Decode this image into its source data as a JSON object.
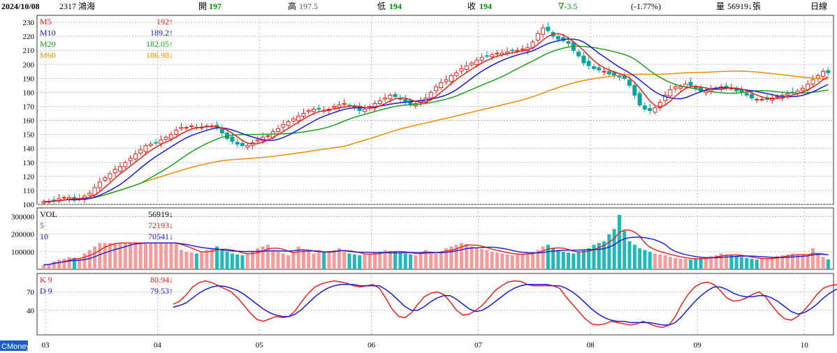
{
  "header": {
    "date": "2024/10/08",
    "stock": "2317 鴻海",
    "open_label": "開",
    "open": "197",
    "high_label": "高",
    "high": "197.5",
    "low_label": "低",
    "low": "194",
    "close_label": "收",
    "close": "194",
    "change": "∇-3.5",
    "change_pct": "(-1.77%)",
    "volume_label": "量",
    "volume": "56919↓張",
    "period": "日線"
  },
  "watermark": "CMoney",
  "colors": {
    "up": "#e8201e",
    "down": "#0aa39a",
    "ma5": "#e8201e",
    "ma10": "#1a1ad0",
    "ma20": "#20a020",
    "ma60": "#f08c00",
    "grid": "#b0b0b0",
    "vol_up": "#f49c9c",
    "vol_down": "#22b8b8"
  },
  "chart_data": [
    {
      "type": "candlestick",
      "name": "price",
      "ylim": [
        100,
        235
      ],
      "yticks": [
        100,
        110,
        120,
        130,
        140,
        150,
        160,
        170,
        180,
        190,
        200,
        210,
        220,
        230
      ],
      "xticks": [
        "03",
        "04",
        "05",
        "06",
        "07",
        "08",
        "09",
        "10"
      ],
      "legend": [
        {
          "name": "M5",
          "value": "192↑",
          "color": "#e8201e"
        },
        {
          "name": "M10",
          "value": "189.2↑",
          "color": "#1a1ad0"
        },
        {
          "name": "M20",
          "value": "182.05↑",
          "color": "#20a020"
        },
        {
          "name": "M60",
          "value": "186.98↓",
          "color": "#f08c00"
        }
      ],
      "closes": [
        102,
        102,
        103,
        104,
        105,
        105,
        103,
        104,
        106,
        108,
        112,
        116,
        119,
        122,
        125,
        127,
        130,
        133,
        136,
        139,
        142,
        143,
        144,
        146,
        148,
        150,
        153,
        155,
        155,
        156,
        155,
        155,
        156,
        156,
        155,
        151,
        147,
        145,
        143,
        142,
        142,
        144,
        146,
        148,
        149,
        152,
        154,
        157,
        159,
        161,
        163,
        165,
        167,
        168,
        168,
        167,
        168,
        170,
        171,
        172,
        170,
        169,
        167,
        168,
        170,
        172,
        174,
        176,
        178,
        177,
        175,
        173,
        171,
        172,
        174,
        176,
        180,
        184,
        187,
        189,
        192,
        194,
        197,
        199,
        201,
        203,
        205,
        206,
        207,
        208,
        208,
        209,
        210,
        210,
        211,
        212,
        216,
        222,
        226,
        224,
        220,
        218,
        217,
        215,
        210,
        206,
        201,
        199,
        197,
        196,
        195,
        193,
        192,
        191,
        190,
        185,
        178,
        171,
        168,
        167,
        169,
        173,
        178,
        182,
        184,
        184,
        186,
        185,
        183,
        181,
        181,
        182,
        183,
        184,
        184,
        183,
        181,
        180,
        178,
        176,
        175,
        175,
        175,
        176,
        177,
        178,
        179,
        180,
        181,
        183,
        186,
        189,
        192,
        195,
        194
      ]
    },
    {
      "type": "bar",
      "name": "volume",
      "ylim": [
        0,
        350000
      ],
      "yticks": [
        100000,
        200000,
        300000
      ],
      "legend": [
        {
          "name": "VOL",
          "value": "56919↓",
          "color": "#000000"
        },
        {
          "name": "5",
          "value": "72193↓",
          "color": "#e8201e"
        },
        {
          "name": "10",
          "value": "70541↓",
          "color": "#1a1ad0"
        }
      ],
      "values": [
        25000,
        30000,
        45000,
        55000,
        60000,
        70000,
        65000,
        60000,
        90000,
        110000,
        130000,
        150000,
        150000,
        150000,
        150000,
        150000,
        150000,
        150000,
        150000,
        150000,
        150000,
        150000,
        150000,
        150000,
        150000,
        150000,
        150000,
        110000,
        100000,
        95000,
        90000,
        100000,
        110000,
        120000,
        130000,
        110000,
        100000,
        90000,
        85000,
        80000,
        90000,
        100000,
        120000,
        130000,
        140000,
        110000,
        100000,
        90000,
        80000,
        95000,
        130000,
        110000,
        100000,
        90000,
        95000,
        100000,
        105000,
        110000,
        120000,
        100000,
        90000,
        85000,
        80000,
        85000,
        90000,
        95000,
        100000,
        110000,
        105000,
        100000,
        95000,
        90000,
        85000,
        80000,
        95000,
        110000,
        100000,
        90000,
        100000,
        120000,
        130000,
        140000,
        150000,
        145000,
        130000,
        120000,
        115000,
        110000,
        100000,
        95000,
        90000,
        85000,
        80000,
        85000,
        90000,
        95000,
        100000,
        110000,
        130000,
        140000,
        120000,
        110000,
        100000,
        95000,
        90000,
        100000,
        110000,
        120000,
        140000,
        150000,
        160000,
        200000,
        230000,
        310000,
        220000,
        160000,
        140000,
        120000,
        110000,
        100000,
        90000,
        85000,
        80000,
        70000,
        65000,
        60000,
        60000,
        55000,
        60000,
        65000,
        70000,
        75000,
        80000,
        90000,
        85000,
        80000,
        75000,
        70000,
        65000,
        60000,
        55000,
        60000,
        65000,
        70000,
        75000,
        80000,
        85000,
        90000,
        85000,
        80000,
        75000,
        120000,
        90000,
        70000,
        56919
      ]
    },
    {
      "type": "line",
      "name": "KD",
      "ylim": [
        0,
        100
      ],
      "yticks": [
        40,
        70
      ],
      "legend": [
        {
          "name": "K 9",
          "value": "80.94↓",
          "color": "#e8201e"
        },
        {
          "name": "D 9",
          "value": "79.53↑",
          "color": "#1a1ad0"
        }
      ],
      "series": [
        {
          "name": "K 9",
          "values": [
            50,
            55,
            65,
            78,
            85,
            88,
            85,
            80,
            75,
            70,
            60,
            48,
            35,
            25,
            22,
            26,
            30,
            28,
            30,
            40,
            55,
            68,
            78,
            83,
            86,
            88,
            86,
            84,
            80,
            78,
            80,
            82,
            76,
            60,
            42,
            30,
            28,
            36,
            50,
            62,
            68,
            70,
            66,
            54,
            40,
            32,
            34,
            40,
            48,
            60,
            72,
            80,
            86,
            88,
            87,
            82,
            80,
            80,
            80,
            80,
            76,
            62,
            50,
            38,
            26,
            18,
            16,
            18,
            22,
            20,
            18,
            16,
            18,
            22,
            18,
            14,
            12,
            16,
            30,
            50,
            66,
            78,
            84,
            86,
            82,
            72,
            60,
            55,
            56,
            60,
            66,
            70,
            62,
            48,
            35,
            26,
            24,
            30,
            40,
            52,
            66,
            76,
            80,
            82,
            78,
            76,
            80,
            80
          ]
        },
        {
          "name": "D 9",
          "values": [
            45,
            48,
            52,
            60,
            68,
            74,
            78,
            80,
            79,
            76,
            72,
            66,
            58,
            50,
            42,
            36,
            32,
            30,
            30,
            34,
            42,
            52,
            62,
            70,
            76,
            80,
            82,
            82,
            82,
            80,
            80,
            80,
            80,
            74,
            66,
            56,
            46,
            40,
            40,
            46,
            54,
            60,
            64,
            64,
            58,
            50,
            42,
            38,
            40,
            46,
            54,
            62,
            70,
            76,
            80,
            82,
            82,
            82,
            82,
            80,
            80,
            76,
            70,
            62,
            52,
            42,
            34,
            28,
            24,
            22,
            22,
            20,
            20,
            20,
            20,
            18,
            16,
            16,
            20,
            30,
            42,
            54,
            64,
            72,
            78,
            78,
            74,
            68,
            64,
            62,
            62,
            64,
            64,
            60,
            54,
            46,
            38,
            34,
            36,
            42,
            50,
            60,
            68,
            74,
            78,
            80,
            80,
            79.53
          ]
        }
      ]
    }
  ]
}
